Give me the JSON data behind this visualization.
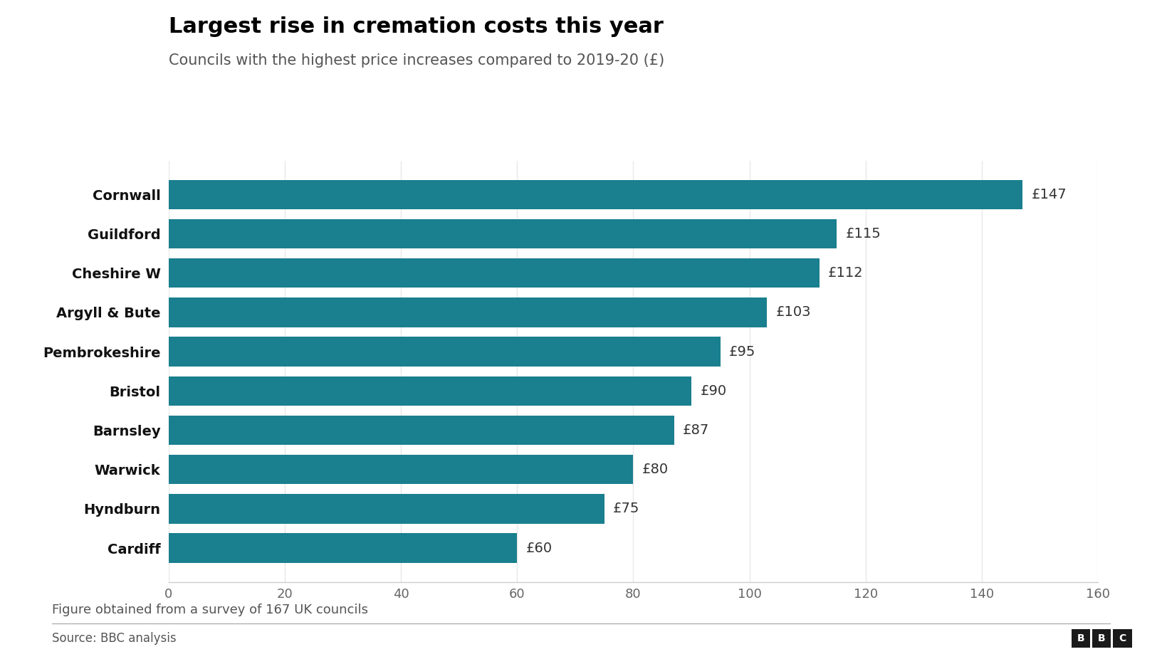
{
  "title": "Largest rise in cremation costs this year",
  "subtitle": "Councils with the highest price increases compared to 2019-20 (£)",
  "footnote": "Figure obtained from a survey of 167 UK councils",
  "source": "Source: BBC analysis",
  "categories": [
    "Cornwall",
    "Guildford",
    "Cheshire W",
    "Argyll & Bute",
    "Pembrokeshire",
    "Bristol",
    "Barnsley",
    "Warwick",
    "Hyndburn",
    "Cardiff"
  ],
  "values": [
    147,
    115,
    112,
    103,
    95,
    90,
    87,
    80,
    75,
    60
  ],
  "bar_color": "#1a7f8e",
  "bar_labels": [
    "£147",
    "£115",
    "£112",
    "£103",
    "£95",
    "£90",
    "£87",
    "£80",
    "£75",
    "£60"
  ],
  "xlim": [
    0,
    160
  ],
  "xticks": [
    0,
    20,
    40,
    60,
    80,
    100,
    120,
    140,
    160
  ],
  "bar_height": 0.75,
  "background_color": "#ffffff",
  "title_fontsize": 22,
  "subtitle_fontsize": 15,
  "category_fontsize": 14,
  "value_label_fontsize": 14,
  "tick_fontsize": 13,
  "footnote_fontsize": 13,
  "source_fontsize": 12,
  "title_color": "#000000",
  "subtitle_color": "#555555",
  "category_color": "#111111",
  "value_label_color": "#333333",
  "tick_color": "#666666",
  "footnote_color": "#555555",
  "source_color": "#555555",
  "grid_color": "#e8e8e8",
  "spine_color": "#cccccc",
  "separator_color": "#aaaaaa"
}
